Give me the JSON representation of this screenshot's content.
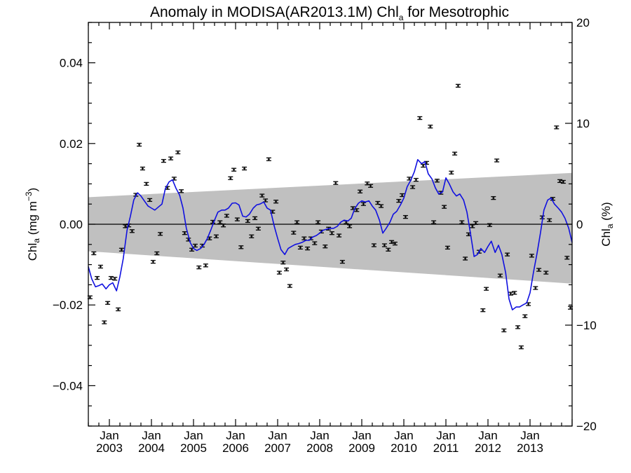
{
  "chart_data": {
    "type": "line",
    "title": {
      "main": "Anomaly in MODISA(AR2013.1M) Chl",
      "sub": "a",
      "rest": " for Mesotrophic"
    },
    "ylabel_left": {
      "main": "Chl",
      "sub": "a",
      "rest": " (mg m",
      "sup": "−3",
      "close": ")"
    },
    "ylabel_right": {
      "main": "Chl",
      "sub": "a",
      "rest": " (%)"
    },
    "xlim": [
      2002.5,
      2014.0
    ],
    "ylim_left": [
      -0.05,
      0.05
    ],
    "ylim_right": [
      -20,
      20
    ],
    "x_ticks": [
      {
        "x": 2003.0,
        "month": "Jan",
        "year": "2003"
      },
      {
        "x": 2004.0,
        "month": "Jan",
        "year": "2004"
      },
      {
        "x": 2005.0,
        "month": "Jan",
        "year": "2005"
      },
      {
        "x": 2006.0,
        "month": "Jan",
        "year": "2006"
      },
      {
        "x": 2007.0,
        "month": "Jan",
        "year": "2007"
      },
      {
        "x": 2008.0,
        "month": "Jan",
        "year": "2008"
      },
      {
        "x": 2009.0,
        "month": "Jan",
        "year": "2009"
      },
      {
        "x": 2010.0,
        "month": "Jan",
        "year": "2010"
      },
      {
        "x": 2011.0,
        "month": "Jan",
        "year": "2011"
      },
      {
        "x": 2012.0,
        "month": "Jan",
        "year": "2012"
      },
      {
        "x": 2013.0,
        "month": "Jan",
        "year": "2013"
      }
    ],
    "y_ticks_left": [
      {
        "v": 0.04,
        "label": "0.04"
      },
      {
        "v": 0.02,
        "label": "0.02"
      },
      {
        "v": 0.0,
        "label": "0.00"
      },
      {
        "v": -0.02,
        "label": "−0.02"
      },
      {
        "v": -0.04,
        "label": "−0.04"
      }
    ],
    "y_ticks_right": [
      {
        "v": 20,
        "label": "20"
      },
      {
        "v": 10,
        "label": "10"
      },
      {
        "v": 0,
        "label": "0"
      },
      {
        "v": -10,
        "label": "−10"
      },
      {
        "v": -20,
        "label": "−20"
      }
    ],
    "band": {
      "start": [
        2002.5,
        -0.0067,
        0.0067
      ],
      "end": [
        2014.0,
        -0.0147,
        0.0127
      ]
    },
    "monthly_anomaly": [
      [
        2002.54,
        -0.0181
      ],
      [
        2002.63,
        -0.0072
      ],
      [
        2002.71,
        -0.0133
      ],
      [
        2002.79,
        -0.0105
      ],
      [
        2002.88,
        -0.0243
      ],
      [
        2002.96,
        -0.0195
      ],
      [
        2003.04,
        -0.0133
      ],
      [
        2003.13,
        -0.0135
      ],
      [
        2003.21,
        -0.0211
      ],
      [
        2003.29,
        -0.0063
      ],
      [
        2003.38,
        -0.0005
      ],
      [
        2003.46,
        -0.0003
      ],
      [
        2003.54,
        -0.0017
      ],
      [
        2003.63,
        0.0073
      ],
      [
        2003.71,
        0.0197
      ],
      [
        2003.79,
        0.0138
      ],
      [
        2003.88,
        0.01
      ],
      [
        2003.96,
        0.006
      ],
      [
        2004.04,
        -0.0093
      ],
      [
        2004.13,
        -0.0072
      ],
      [
        2004.21,
        -0.0024
      ],
      [
        2004.29,
        0.0157
      ],
      [
        2004.38,
        0.009
      ],
      [
        2004.46,
        0.0163
      ],
      [
        2004.54,
        0.0113
      ],
      [
        2004.63,
        0.0178
      ],
      [
        2004.71,
        0.0082
      ],
      [
        2004.79,
        -0.0022
      ],
      [
        2004.88,
        -0.0038
      ],
      [
        2004.96,
        -0.0063
      ],
      [
        2005.04,
        -0.0053
      ],
      [
        2005.13,
        -0.0107
      ],
      [
        2005.21,
        -0.0053
      ],
      [
        2005.29,
        -0.0102
      ],
      [
        2005.38,
        -0.0035
      ],
      [
        2005.46,
        0.0006
      ],
      [
        2005.54,
        -0.003
      ],
      [
        2005.63,
        0.0005
      ],
      [
        2005.71,
        -0.0003
      ],
      [
        2005.79,
        0.0021
      ],
      [
        2005.88,
        0.0114
      ],
      [
        2005.96,
        0.0135
      ],
      [
        2006.04,
        0.0012
      ],
      [
        2006.13,
        -0.0057
      ],
      [
        2006.21,
        0.0138
      ],
      [
        2006.29,
        0.0008
      ],
      [
        2006.38,
        -0.003
      ],
      [
        2006.46,
        0.0015
      ],
      [
        2006.54,
        -0.0011
      ],
      [
        2006.63,
        0.0071
      ],
      [
        2006.71,
        0.0059
      ],
      [
        2006.79,
        0.0161
      ],
      [
        2006.88,
        0.0031
      ],
      [
        2006.96,
        0.0056
      ],
      [
        2007.04,
        -0.012
      ],
      [
        2007.13,
        -0.0095
      ],
      [
        2007.21,
        -0.0112
      ],
      [
        2007.29,
        -0.0153
      ],
      [
        2007.38,
        -0.0021
      ],
      [
        2007.46,
        0.0005
      ],
      [
        2007.54,
        -0.0058
      ],
      [
        2007.63,
        -0.0035
      ],
      [
        2007.71,
        -0.006
      ],
      [
        2007.79,
        -0.0035
      ],
      [
        2007.88,
        -0.0047
      ],
      [
        2007.96,
        0.0005
      ],
      [
        2008.04,
        -0.0018
      ],
      [
        2008.13,
        -0.0055
      ],
      [
        2008.21,
        -0.0011
      ],
      [
        2008.29,
        -0.0022
      ],
      [
        2008.38,
        0.0102
      ],
      [
        2008.46,
        -0.0028
      ],
      [
        2008.54,
        -0.0093
      ],
      [
        2008.63,
        0.0005
      ],
      [
        2008.71,
        -0.0005
      ],
      [
        2008.79,
        0.004
      ],
      [
        2008.88,
        0.0035
      ],
      [
        2008.96,
        0.0081
      ],
      [
        2009.04,
        0.005
      ],
      [
        2009.13,
        0.0101
      ],
      [
        2009.21,
        0.0095
      ],
      [
        2009.29,
        -0.0052
      ],
      [
        2009.38,
        0.0053
      ],
      [
        2009.46,
        0.0045
      ],
      [
        2009.54,
        -0.0052
      ],
      [
        2009.63,
        -0.0063
      ],
      [
        2009.71,
        -0.0044
      ],
      [
        2009.79,
        -0.0048
      ],
      [
        2009.88,
        0.0058
      ],
      [
        2009.96,
        0.0072
      ],
      [
        2010.04,
        0.0018
      ],
      [
        2010.13,
        0.0113
      ],
      [
        2010.21,
        0.0092
      ],
      [
        2010.29,
        0.011
      ],
      [
        2010.38,
        0.0263
      ],
      [
        2010.46,
        0.0145
      ],
      [
        2010.54,
        0.0152
      ],
      [
        2010.63,
        0.0242
      ],
      [
        2010.71,
        0.0005
      ],
      [
        2010.79,
        0.0108
      ],
      [
        2010.88,
        0.0078
      ],
      [
        2010.96,
        0.0043
      ],
      [
        2011.04,
        -0.0058
      ],
      [
        2011.13,
        0.0128
      ],
      [
        2011.21,
        0.0175
      ],
      [
        2011.29,
        0.0343
      ],
      [
        2011.38,
        0.0005
      ],
      [
        2011.46,
        -0.0085
      ],
      [
        2011.54,
        -0.0025
      ],
      [
        2011.63,
        -0.0005
      ],
      [
        2011.71,
        0.0003
      ],
      [
        2011.79,
        -0.0068
      ],
      [
        2011.88,
        -0.0213
      ],
      [
        2011.96,
        -0.016
      ],
      [
        2012.04,
        -0.0002
      ],
      [
        2012.13,
        0.0065
      ],
      [
        2012.21,
        0.0158
      ],
      [
        2012.29,
        -0.0127
      ],
      [
        2012.38,
        -0.0263
      ],
      [
        2012.46,
        -0.0075
      ],
      [
        2012.54,
        -0.0172
      ],
      [
        2012.63,
        -0.017
      ],
      [
        2012.71,
        -0.0255
      ],
      [
        2012.79,
        -0.0305
      ],
      [
        2012.88,
        -0.0228
      ],
      [
        2012.96,
        -0.0198
      ],
      [
        2013.04,
        -0.0078
      ],
      [
        2013.13,
        -0.0158
      ],
      [
        2013.21,
        -0.0113
      ],
      [
        2013.29,
        0.0017
      ],
      [
        2013.38,
        -0.012
      ],
      [
        2013.46,
        0.001
      ],
      [
        2013.54,
        0.0063
      ],
      [
        2013.63,
        0.024
      ],
      [
        2013.71,
        0.0107
      ],
      [
        2013.79,
        0.0105
      ],
      [
        2013.88,
        -0.0083
      ],
      [
        2013.96,
        -0.0207
      ]
    ],
    "running_mean": [
      [
        2002.5,
        -0.0105
      ],
      [
        2002.58,
        -0.0135
      ],
      [
        2002.67,
        -0.0155
      ],
      [
        2002.75,
        -0.0152
      ],
      [
        2002.83,
        -0.0148
      ],
      [
        2002.92,
        -0.016
      ],
      [
        2003.0,
        -0.015
      ],
      [
        2003.08,
        -0.0145
      ],
      [
        2003.17,
        -0.0165
      ],
      [
        2003.25,
        -0.013
      ],
      [
        2003.33,
        -0.0085
      ],
      [
        2003.42,
        -0.0015
      ],
      [
        2003.5,
        0.002
      ],
      [
        2003.58,
        0.006
      ],
      [
        2003.67,
        0.0078
      ],
      [
        2003.75,
        0.007
      ],
      [
        2003.83,
        0.0058
      ],
      [
        2003.92,
        0.0045
      ],
      [
        2004.0,
        0.004
      ],
      [
        2004.08,
        0.0035
      ],
      [
        2004.17,
        0.0043
      ],
      [
        2004.25,
        0.005
      ],
      [
        2004.33,
        0.0088
      ],
      [
        2004.42,
        0.0105
      ],
      [
        2004.5,
        0.011
      ],
      [
        2004.58,
        0.009
      ],
      [
        2004.67,
        0.0072
      ],
      [
        2004.75,
        0.004
      ],
      [
        2004.83,
        -0.001
      ],
      [
        2004.92,
        -0.0045
      ],
      [
        2005.0,
        -0.006
      ],
      [
        2005.08,
        -0.0065
      ],
      [
        2005.17,
        -0.006
      ],
      [
        2005.25,
        -0.005
      ],
      [
        2005.33,
        -0.0035
      ],
      [
        2005.42,
        -0.0012
      ],
      [
        2005.5,
        0.001
      ],
      [
        2005.58,
        0.003
      ],
      [
        2005.67,
        0.0035
      ],
      [
        2005.75,
        0.0035
      ],
      [
        2005.83,
        0.004
      ],
      [
        2005.92,
        0.0052
      ],
      [
        2006.0,
        0.0053
      ],
      [
        2006.08,
        0.0048
      ],
      [
        2006.17,
        0.002
      ],
      [
        2006.25,
        0.0018
      ],
      [
        2006.33,
        0.0025
      ],
      [
        2006.42,
        0.004
      ],
      [
        2006.5,
        0.0048
      ],
      [
        2006.58,
        0.005
      ],
      [
        2006.67,
        0.0055
      ],
      [
        2006.75,
        0.004
      ],
      [
        2006.83,
        0.0035
      ],
      [
        2006.92,
        -0.0005
      ],
      [
        2007.0,
        -0.0035
      ],
      [
        2007.08,
        -0.0063
      ],
      [
        2007.17,
        -0.0075
      ],
      [
        2007.25,
        -0.006
      ],
      [
        2007.33,
        -0.0055
      ],
      [
        2007.42,
        -0.005
      ],
      [
        2007.5,
        -0.0048
      ],
      [
        2007.58,
        -0.0045
      ],
      [
        2007.67,
        -0.004
      ],
      [
        2007.75,
        -0.004
      ],
      [
        2007.83,
        -0.0032
      ],
      [
        2007.92,
        -0.0028
      ],
      [
        2008.0,
        -0.0022
      ],
      [
        2008.08,
        -0.0015
      ],
      [
        2008.17,
        -0.0012
      ],
      [
        2008.25,
        -0.001
      ],
      [
        2008.33,
        -0.001
      ],
      [
        2008.42,
        -0.0005
      ],
      [
        2008.5,
        0.0005
      ],
      [
        2008.58,
        0.001
      ],
      [
        2008.67,
        0.0008
      ],
      [
        2008.75,
        0.0015
      ],
      [
        2008.83,
        0.0038
      ],
      [
        2008.92,
        0.0052
      ],
      [
        2009.0,
        0.0058
      ],
      [
        2009.08,
        0.0055
      ],
      [
        2009.17,
        0.0058
      ],
      [
        2009.25,
        0.0045
      ],
      [
        2009.33,
        0.0035
      ],
      [
        2009.42,
        0.001
      ],
      [
        2009.5,
        -0.0022
      ],
      [
        2009.58,
        -0.001
      ],
      [
        2009.67,
        0.0005
      ],
      [
        2009.75,
        0.0025
      ],
      [
        2009.83,
        0.0032
      ],
      [
        2009.92,
        0.0048
      ],
      [
        2010.0,
        0.0065
      ],
      [
        2010.08,
        0.0093
      ],
      [
        2010.17,
        0.011
      ],
      [
        2010.25,
        0.013
      ],
      [
        2010.33,
        0.016
      ],
      [
        2010.42,
        0.015
      ],
      [
        2010.5,
        0.0155
      ],
      [
        2010.58,
        0.0125
      ],
      [
        2010.67,
        0.0112
      ],
      [
        2010.75,
        0.009
      ],
      [
        2010.83,
        0.0075
      ],
      [
        2010.92,
        0.008
      ],
      [
        2011.0,
        0.0115
      ],
      [
        2011.08,
        0.01
      ],
      [
        2011.17,
        0.008
      ],
      [
        2011.25,
        0.007
      ],
      [
        2011.33,
        0.0075
      ],
      [
        2011.42,
        0.006
      ],
      [
        2011.5,
        0.003
      ],
      [
        2011.58,
        -0.002
      ],
      [
        2011.67,
        -0.008
      ],
      [
        2011.75,
        -0.0075
      ],
      [
        2011.83,
        -0.006
      ],
      [
        2011.92,
        -0.007
      ],
      [
        2012.0,
        -0.0055
      ],
      [
        2012.08,
        -0.0042
      ],
      [
        2012.17,
        -0.007
      ],
      [
        2012.25,
        -0.0052
      ],
      [
        2012.33,
        -0.0075
      ],
      [
        2012.42,
        -0.012
      ],
      [
        2012.5,
        -0.0185
      ],
      [
        2012.58,
        -0.0212
      ],
      [
        2012.67,
        -0.0205
      ],
      [
        2012.75,
        -0.0205
      ],
      [
        2012.83,
        -0.02
      ],
      [
        2012.92,
        -0.0195
      ],
      [
        2013.0,
        -0.017
      ],
      [
        2013.08,
        -0.012
      ],
      [
        2013.17,
        -0.007
      ],
      [
        2013.25,
        -0.002
      ],
      [
        2013.33,
        0.0035
      ],
      [
        2013.42,
        0.006
      ],
      [
        2013.5,
        0.0065
      ],
      [
        2013.58,
        0.005
      ],
      [
        2013.67,
        0.004
      ],
      [
        2013.75,
        0.003
      ],
      [
        2013.83,
        0.0015
      ],
      [
        2013.92,
        -0.001
      ],
      [
        2014.0,
        -0.0045
      ]
    ],
    "colors": {
      "running_mean": "#1010e0",
      "band": "#c0c0c0",
      "markers": "#000000",
      "zero_line": "#000000"
    },
    "grid": false
  }
}
